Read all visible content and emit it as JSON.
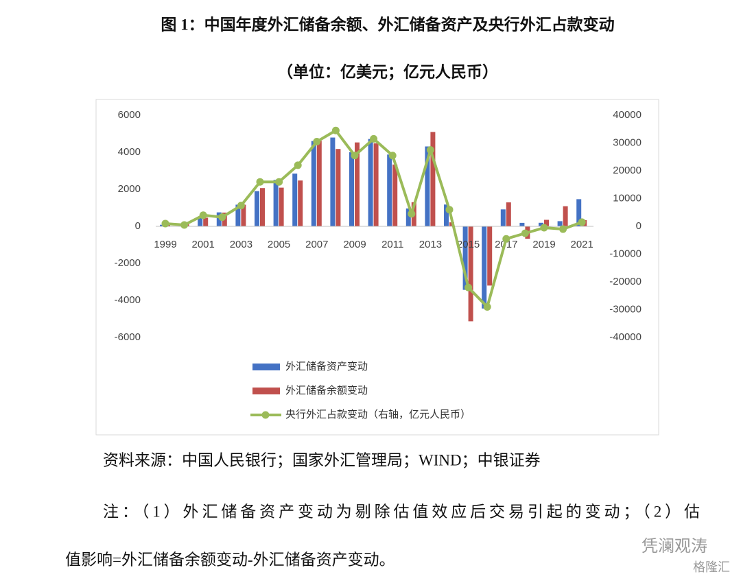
{
  "document": {
    "title": "图 1：中国年度外汇储备余额、外汇储备资产及央行外汇占款变动",
    "subtitle": "（单位：亿美元；亿元人民币）",
    "source": "资料来源：中国人民银行；国家外汇管理局；WIND；中银证券",
    "note_line1": "注：（1）外汇储备资产变动为剔除估值效应后交易引起的变动；（2）估",
    "note_line2": "值影响=外汇储备余额变动-外汇储备资产变动。",
    "watermark1": "凭澜观涛",
    "watermark2": "格隆汇"
  },
  "chart_data": {
    "type": "bar-line",
    "categories": [
      "1999",
      null,
      "2001",
      null,
      "2003",
      null,
      "2005",
      null,
      "2007",
      null,
      "2009",
      null,
      "2011",
      null,
      "2013",
      null,
      "2015",
      null,
      "2017",
      null,
      "2019",
      null,
      "2021"
    ],
    "series": [
      {
        "name": "外汇储备资产变动",
        "color": "#4472c4",
        "type": "bar",
        "values": [
          85,
          105,
          473,
          755,
          1170,
          1901,
          2506,
          2848,
          4607,
          4795,
          4003,
          4717,
          3878,
          966,
          4314,
          1178,
          -3429,
          -4437,
          915,
          189,
          193,
          280,
          1467
        ]
      },
      {
        "name": "外汇储备余额变动",
        "color": "#c0504d",
        "type": "bar",
        "values": [
          97,
          109,
          466,
          742,
          1168,
          2067,
          2089,
          2475,
          4619,
          4178,
          4531,
          4481,
          3338,
          1304,
          5097,
          217,
          -5127,
          -3198,
          1294,
          -672,
          352,
          1086,
          336
        ]
      },
      {
        "name": "央行外汇占款变动（右轴，亿元人民币）",
        "color": "#9bbb59",
        "type": "line",
        "axis": "y2",
        "values": [
          1000,
          500,
          4000,
          3300,
          7500,
          16000,
          16000,
          22000,
          30500,
          34500,
          25500,
          31500,
          25500,
          4500,
          27500,
          6000,
          -22000,
          -29000,
          -4500,
          -2500,
          -500,
          -1000,
          1500
        ]
      }
    ],
    "ylim": [
      -6000,
      6000
    ],
    "yticks": [
      -6000,
      -4000,
      -2000,
      0,
      2000,
      4000,
      6000
    ],
    "y2lim": [
      -40000,
      40000
    ],
    "y2ticks": [
      -40000,
      -30000,
      -20000,
      -10000,
      0,
      10000,
      20000,
      30000,
      40000
    ],
    "grid": false
  }
}
